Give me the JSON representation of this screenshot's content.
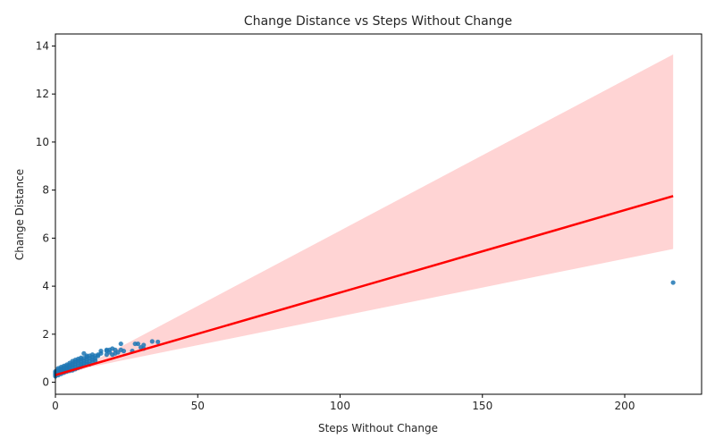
{
  "chart_data": {
    "type": "scatter",
    "title": "Change Distance vs Steps Without Change",
    "xlabel": "Steps Without Change",
    "ylabel": "Change Distance",
    "xlim": [
      0,
      227
    ],
    "ylim": [
      -0.5,
      14.5
    ],
    "xticks": [
      0,
      50,
      100,
      150,
      200
    ],
    "yticks": [
      0,
      2,
      4,
      6,
      8,
      10,
      12,
      14
    ],
    "grid": false,
    "colors": {
      "points": "#1f77b4",
      "regression": "#ff0000",
      "ci_band": "#ffcccc"
    },
    "points": [
      [
        0,
        0.25
      ],
      [
        0,
        0.3
      ],
      [
        0,
        0.35
      ],
      [
        0,
        0.4
      ],
      [
        0,
        0.45
      ],
      [
        1,
        0.3
      ],
      [
        1,
        0.38
      ],
      [
        1,
        0.45
      ],
      [
        1,
        0.52
      ],
      [
        1,
        0.58
      ],
      [
        2,
        0.35
      ],
      [
        2,
        0.42
      ],
      [
        2,
        0.5
      ],
      [
        2,
        0.57
      ],
      [
        2,
        0.63
      ],
      [
        3,
        0.4
      ],
      [
        3,
        0.48
      ],
      [
        3,
        0.55
      ],
      [
        3,
        0.62
      ],
      [
        3,
        0.68
      ],
      [
        4,
        0.45
      ],
      [
        4,
        0.52
      ],
      [
        4,
        0.6
      ],
      [
        4,
        0.67
      ],
      [
        4,
        0.73
      ],
      [
        5,
        0.48
      ],
      [
        5,
        0.56
      ],
      [
        5,
        0.64
      ],
      [
        5,
        0.72
      ],
      [
        5,
        0.8
      ],
      [
        6,
        0.5
      ],
      [
        6,
        0.6
      ],
      [
        6,
        0.7
      ],
      [
        6,
        0.78
      ],
      [
        6,
        0.88
      ],
      [
        7,
        0.55
      ],
      [
        7,
        0.65
      ],
      [
        7,
        0.75
      ],
      [
        7,
        0.85
      ],
      [
        7,
        0.93
      ],
      [
        8,
        0.6
      ],
      [
        8,
        0.7
      ],
      [
        8,
        0.8
      ],
      [
        8,
        0.9
      ],
      [
        8,
        0.97
      ],
      [
        9,
        0.65
      ],
      [
        9,
        0.75
      ],
      [
        9,
        0.85
      ],
      [
        9,
        0.95
      ],
      [
        9,
        1.02
      ],
      [
        10,
        0.7
      ],
      [
        10,
        0.8
      ],
      [
        10,
        0.9
      ],
      [
        10,
        1.0
      ],
      [
        10,
        1.2
      ],
      [
        11,
        0.75
      ],
      [
        11,
        0.85
      ],
      [
        11,
        0.95
      ],
      [
        11,
        1.05
      ],
      [
        11,
        1.1
      ],
      [
        12,
        0.75
      ],
      [
        12,
        0.88
      ],
      [
        12,
        1.0
      ],
      [
        12,
        1.1
      ],
      [
        13,
        0.85
      ],
      [
        13,
        0.95
      ],
      [
        13,
        1.05
      ],
      [
        13,
        1.15
      ],
      [
        14,
        0.9
      ],
      [
        14,
        1.0
      ],
      [
        14,
        1.1
      ],
      [
        15,
        1.1
      ],
      [
        15,
        1.15
      ],
      [
        16,
        1.2
      ],
      [
        16,
        1.3
      ],
      [
        18,
        1.15
      ],
      [
        18,
        1.3
      ],
      [
        18,
        1.35
      ],
      [
        19,
        1.25
      ],
      [
        19,
        1.35
      ],
      [
        20,
        1.15
      ],
      [
        20,
        1.4
      ],
      [
        21,
        1.2
      ],
      [
        21,
        1.35
      ],
      [
        22,
        1.25
      ],
      [
        23,
        1.35
      ],
      [
        23,
        1.6
      ],
      [
        24,
        1.3
      ],
      [
        27,
        1.3
      ],
      [
        28,
        1.6
      ],
      [
        29,
        1.6
      ],
      [
        30,
        1.45
      ],
      [
        31,
        1.4
      ],
      [
        31,
        1.55
      ],
      [
        34,
        1.7
      ],
      [
        36,
        1.68
      ],
      [
        217,
        4.15
      ]
    ],
    "regression": {
      "x_start": 0,
      "y_start": 0.3,
      "x_end": 217,
      "y_end": 7.75,
      "ci_lower_end": 5.55,
      "ci_upper_end": 13.65
    }
  }
}
